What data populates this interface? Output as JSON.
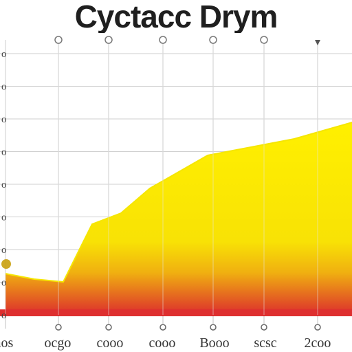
{
  "chart_data": {
    "type": "area",
    "title": "Cyctacc Drym",
    "xlabel": "",
    "ylabel": "",
    "x_tick_labels": [
      "",
      "",
      "",
      "",
      "",
      "",
      ""
    ],
    "x_bottom_labels": [
      "aos",
      "ocgo",
      "cooo",
      "cooo",
      "Booo",
      "scsc",
      "2coo"
    ],
    "y_tick_labels": [
      "o",
      "o",
      "o",
      "o",
      "o",
      "o",
      "o",
      "o",
      "o"
    ],
    "x": [
      0,
      1,
      2,
      3,
      4,
      5,
      6,
      7,
      8,
      9,
      10,
      11,
      12
    ],
    "series": [
      {
        "values": [
          15,
          13,
          12,
          33,
          37,
          46,
          52,
          58,
          60,
          62,
          64,
          67,
          70
        ]
      }
    ],
    "ylim": [
      0,
      100
    ],
    "grid": true,
    "colors": {
      "fill_top": "#ffee00",
      "fill_mid": "#f2c20a",
      "fill_bottom": "#dd2a2a",
      "grid": "#cfcfcf",
      "line": "#f5e600"
    }
  }
}
